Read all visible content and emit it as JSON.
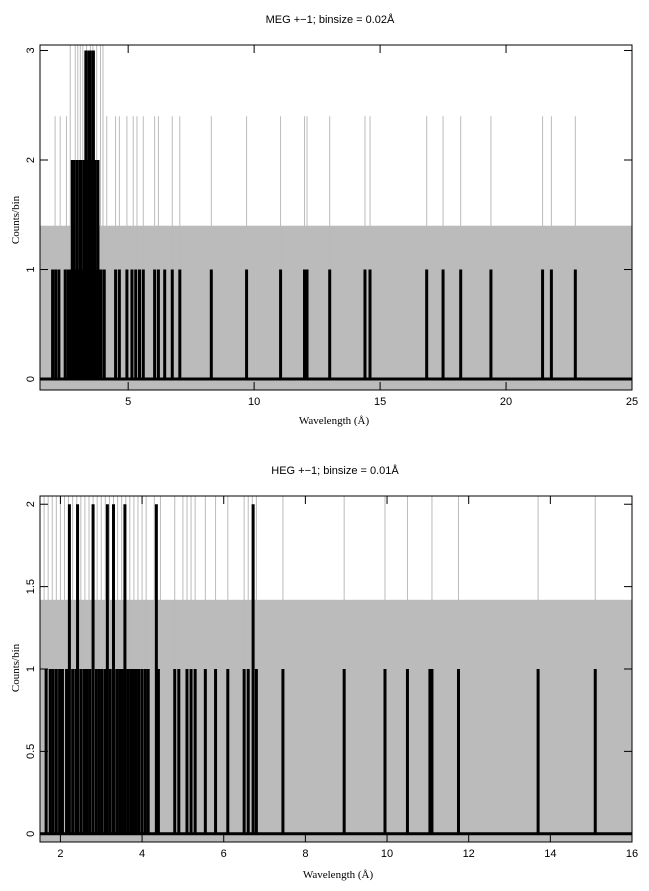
{
  "chart_data": [
    {
      "type": "histogram",
      "title": "MEG +−1; binsize = 0.02Å",
      "xlabel": "Wavelength (Å)",
      "ylabel": "Counts/bin",
      "xlim": [
        1.5,
        25
      ],
      "ylim": [
        -0.1,
        3.05
      ],
      "xticks": [
        5,
        10,
        15,
        20,
        25
      ],
      "xtick_labels": [
        "5",
        "10",
        "15",
        "20",
        "25"
      ],
      "yticks": [
        0,
        1,
        2,
        3
      ],
      "ytick_labels": [
        "0",
        "1",
        "2",
        "3"
      ],
      "background_level": 1.4,
      "grid": false,
      "series": [
        {
          "role": "counts",
          "color": "#000000",
          "points": [
            [
              2.0,
              1
            ],
            [
              2.12,
              1
            ],
            [
              2.25,
              1
            ],
            [
              2.5,
              1
            ],
            [
              2.62,
              1
            ],
            [
              2.72,
              1
            ],
            [
              2.78,
              2
            ],
            [
              2.84,
              2
            ],
            [
              2.9,
              1
            ],
            [
              2.96,
              2
            ],
            [
              3.02,
              1
            ],
            [
              3.08,
              2
            ],
            [
              3.14,
              2
            ],
            [
              3.2,
              1
            ],
            [
              3.26,
              2
            ],
            [
              3.32,
              3
            ],
            [
              3.38,
              2
            ],
            [
              3.44,
              3
            ],
            [
              3.5,
              3
            ],
            [
              3.56,
              2
            ],
            [
              3.62,
              3
            ],
            [
              3.68,
              2
            ],
            [
              3.74,
              1
            ],
            [
              3.8,
              2
            ],
            [
              3.86,
              1
            ],
            [
              3.92,
              1
            ],
            [
              4.05,
              1
            ],
            [
              4.5,
              1
            ],
            [
              4.65,
              1
            ],
            [
              4.95,
              1
            ],
            [
              5.15,
              1
            ],
            [
              5.3,
              1
            ],
            [
              5.45,
              1
            ],
            [
              5.6,
              1
            ],
            [
              6.05,
              1
            ],
            [
              6.2,
              1
            ],
            [
              6.45,
              1
            ],
            [
              6.75,
              1
            ],
            [
              7.05,
              1
            ],
            [
              8.3,
              1
            ],
            [
              9.7,
              1
            ],
            [
              11.05,
              1
            ],
            [
              12.0,
              1
            ],
            [
              12.1,
              1
            ],
            [
              13.0,
              1
            ],
            [
              14.4,
              1
            ],
            [
              14.6,
              1
            ],
            [
              16.85,
              1
            ],
            [
              17.5,
              1
            ],
            [
              18.2,
              1
            ],
            [
              19.4,
              1
            ],
            [
              21.45,
              1
            ],
            [
              21.8,
              1
            ],
            [
              22.75,
              1
            ]
          ]
        },
        {
          "role": "model",
          "color": "#bbbbbb",
          "points": [
            [
              2.1,
              2.4
            ],
            [
              2.3,
              2.4
            ],
            [
              2.55,
              2.4
            ],
            [
              2.7,
              3.05
            ],
            [
              2.9,
              3.05
            ],
            [
              3.0,
              3.05
            ],
            [
              3.1,
              3.05
            ],
            [
              3.2,
              3.05
            ],
            [
              3.35,
              3.05
            ],
            [
              3.5,
              3.05
            ],
            [
              3.6,
              3.05
            ],
            [
              3.75,
              3.05
            ],
            [
              3.9,
              3.05
            ],
            [
              4.0,
              3.05
            ],
            [
              4.15,
              2.4
            ],
            [
              4.5,
              2.4
            ],
            [
              4.65,
              2.4
            ],
            [
              4.95,
              2.4
            ],
            [
              5.2,
              2.4
            ],
            [
              5.35,
              2.4
            ],
            [
              5.6,
              2.4
            ],
            [
              6.05,
              2.4
            ],
            [
              6.2,
              2.4
            ],
            [
              6.75,
              2.4
            ],
            [
              7.05,
              2.4
            ],
            [
              8.3,
              2.4
            ],
            [
              9.7,
              2.4
            ],
            [
              11.05,
              2.4
            ],
            [
              12.0,
              2.4
            ],
            [
              12.1,
              2.4
            ],
            [
              13.0,
              2.4
            ],
            [
              14.4,
              2.4
            ],
            [
              14.6,
              2.4
            ],
            [
              16.85,
              2.4
            ],
            [
              17.5,
              2.4
            ],
            [
              18.2,
              2.4
            ],
            [
              19.4,
              2.4
            ],
            [
              21.45,
              2.4
            ],
            [
              21.8,
              2.4
            ],
            [
              22.75,
              2.4
            ]
          ]
        }
      ]
    },
    {
      "type": "histogram",
      "title": "HEG +−1; binsize = 0.01Å",
      "xlabel": "Wavelength (Å)",
      "ylabel": "Counts/bin",
      "xlim": [
        1.5,
        16
      ],
      "ylim": [
        -0.05,
        2.05
      ],
      "xticks": [
        2,
        4,
        6,
        8,
        10,
        12,
        14,
        16
      ],
      "xtick_labels": [
        "2",
        "4",
        "6",
        "8",
        "10",
        "12",
        "14",
        "16"
      ],
      "yticks": [
        0,
        0.5,
        1,
        1.5,
        2
      ],
      "ytick_labels": [
        "0",
        "0.5",
        "1",
        "1.5",
        "2"
      ],
      "background_level": 1.42,
      "grid": false,
      "series": [
        {
          "role": "counts",
          "color": "#000000",
          "points": [
            [
              1.65,
              1
            ],
            [
              1.75,
              1
            ],
            [
              1.82,
              1
            ],
            [
              1.9,
              1
            ],
            [
              1.98,
              1
            ],
            [
              2.05,
              1
            ],
            [
              2.15,
              1
            ],
            [
              2.22,
              2
            ],
            [
              2.3,
              1
            ],
            [
              2.38,
              1
            ],
            [
              2.42,
              2
            ],
            [
              2.5,
              1
            ],
            [
              2.58,
              1
            ],
            [
              2.65,
              1
            ],
            [
              2.72,
              1
            ],
            [
              2.8,
              2
            ],
            [
              2.88,
              1
            ],
            [
              2.95,
              1
            ],
            [
              3.02,
              1
            ],
            [
              3.1,
              1
            ],
            [
              3.15,
              2
            ],
            [
              3.22,
              1
            ],
            [
              3.3,
              2
            ],
            [
              3.38,
              1
            ],
            [
              3.45,
              1
            ],
            [
              3.52,
              1
            ],
            [
              3.58,
              2
            ],
            [
              3.65,
              1
            ],
            [
              3.72,
              1
            ],
            [
              3.78,
              1
            ],
            [
              3.85,
              1
            ],
            [
              3.92,
              1
            ],
            [
              4.0,
              1
            ],
            [
              4.08,
              1
            ],
            [
              4.15,
              1
            ],
            [
              4.35,
              2
            ],
            [
              4.4,
              1
            ],
            [
              4.8,
              1
            ],
            [
              4.9,
              1
            ],
            [
              5.1,
              1
            ],
            [
              5.2,
              1
            ],
            [
              5.3,
              1
            ],
            [
              5.55,
              1
            ],
            [
              5.8,
              1
            ],
            [
              6.1,
              1
            ],
            [
              6.5,
              1
            ],
            [
              6.6,
              1
            ],
            [
              6.72,
              2
            ],
            [
              6.8,
              1
            ],
            [
              7.45,
              1
            ],
            [
              8.95,
              1
            ],
            [
              9.95,
              1
            ],
            [
              10.5,
              1
            ],
            [
              11.05,
              1
            ],
            [
              11.1,
              1
            ],
            [
              11.75,
              1
            ],
            [
              13.7,
              1
            ],
            [
              15.1,
              1
            ]
          ]
        },
        {
          "role": "model",
          "color": "#bbbbbb",
          "points": [
            [
              1.6,
              2.05
            ],
            [
              1.7,
              2.05
            ],
            [
              1.8,
              2.05
            ],
            [
              1.9,
              2.05
            ],
            [
              2.0,
              2.05
            ],
            [
              2.1,
              2.05
            ],
            [
              2.2,
              2.05
            ],
            [
              2.3,
              2.05
            ],
            [
              2.4,
              2.05
            ],
            [
              2.5,
              2.05
            ],
            [
              2.6,
              2.05
            ],
            [
              2.7,
              2.05
            ],
            [
              2.8,
              2.05
            ],
            [
              2.9,
              2.05
            ],
            [
              3.0,
              2.05
            ],
            [
              3.1,
              2.05
            ],
            [
              3.2,
              2.05
            ],
            [
              3.3,
              2.05
            ],
            [
              3.4,
              2.05
            ],
            [
              3.5,
              2.05
            ],
            [
              3.6,
              2.05
            ],
            [
              3.7,
              2.05
            ],
            [
              3.8,
              2.05
            ],
            [
              3.9,
              2.05
            ],
            [
              4.0,
              2.05
            ],
            [
              4.1,
              2.05
            ],
            [
              4.3,
              2.05
            ],
            [
              4.45,
              2.05
            ],
            [
              4.8,
              2.05
            ],
            [
              5.0,
              2.05
            ],
            [
              5.1,
              2.05
            ],
            [
              5.2,
              2.05
            ],
            [
              5.3,
              2.05
            ],
            [
              5.55,
              2.05
            ],
            [
              5.8,
              2.05
            ],
            [
              6.1,
              2.05
            ],
            [
              6.5,
              2.05
            ],
            [
              6.6,
              2.05
            ],
            [
              6.7,
              2.05
            ],
            [
              6.8,
              2.05
            ],
            [
              7.45,
              2.05
            ],
            [
              8.95,
              2.05
            ],
            [
              9.95,
              2.05
            ],
            [
              10.5,
              2.05
            ],
            [
              11.1,
              2.05
            ],
            [
              11.75,
              2.05
            ],
            [
              13.7,
              2.05
            ],
            [
              15.1,
              2.05
            ]
          ]
        }
      ]
    }
  ]
}
